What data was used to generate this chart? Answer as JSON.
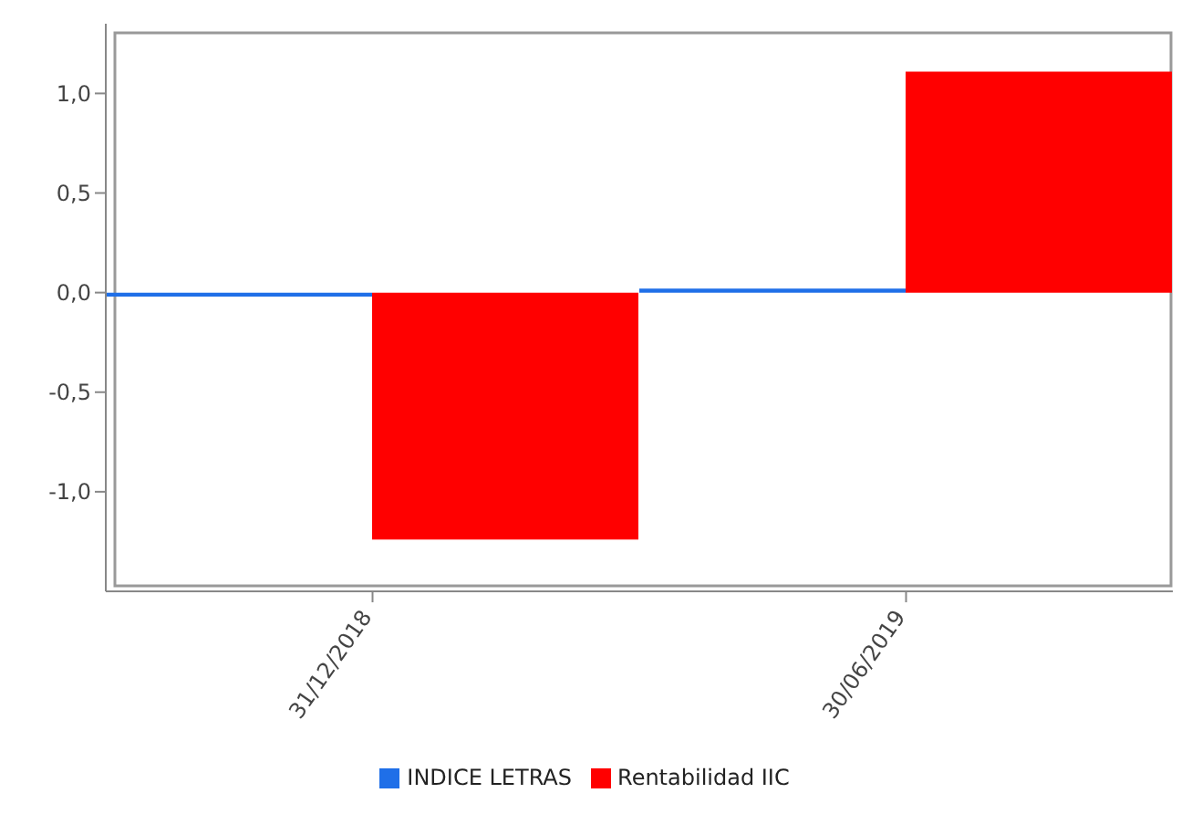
{
  "chart_data": {
    "type": "bar",
    "categories": [
      "31/12/2018",
      "30/06/2019"
    ],
    "series": [
      {
        "name": "INDICE LETRAS",
        "color": "#1f6fe8",
        "values": [
          -0.02,
          0.02
        ]
      },
      {
        "name": "Rentabilidad IIC",
        "color": "#ff0000",
        "values": [
          -1.24,
          1.11
        ]
      }
    ],
    "ylim": [
      -1.5,
      1.35
    ],
    "yticks": [
      {
        "value": -1,
        "label": "-1,0"
      },
      {
        "value": -0.5,
        "label": "-0,5"
      },
      {
        "value": 0,
        "label": "0,0"
      },
      {
        "value": 0.5,
        "label": "0,5"
      },
      {
        "value": 1,
        "label": "1,0"
      }
    ],
    "grid": false,
    "legend": "bottom"
  }
}
